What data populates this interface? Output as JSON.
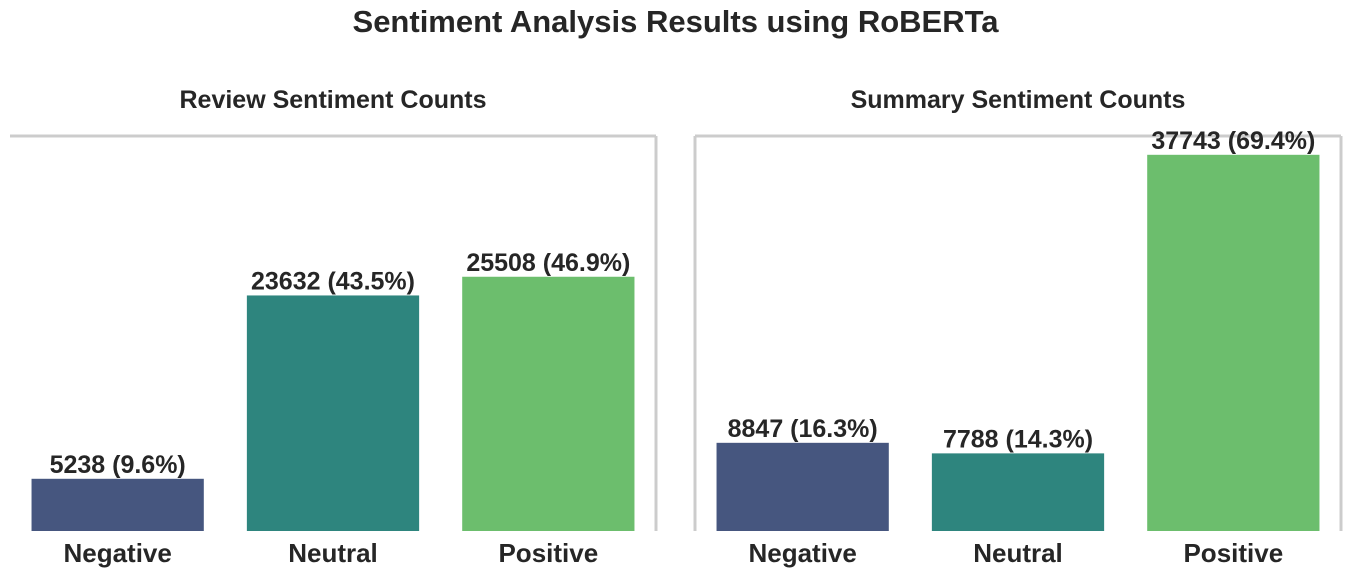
{
  "figure": {
    "title": "Sentiment Analysis Results using RoBERTa"
  },
  "chart_data": [
    {
      "type": "bar",
      "title": "Review Sentiment Counts",
      "categories": [
        "Negative",
        "Neutral",
        "Positive"
      ],
      "values": [
        5238,
        23632,
        25508
      ],
      "data_labels": [
        "5238 (9.6%)",
        "23632 (43.5%)",
        "25508 (46.9%)"
      ],
      "colors": [
        "#46567f",
        "#2e857e",
        "#6cbe6d"
      ],
      "ylim": [
        0,
        39630
      ],
      "y_ticks_visible": false,
      "grid": false
    },
    {
      "type": "bar",
      "title": "Summary Sentiment Counts",
      "categories": [
        "Negative",
        "Neutral",
        "Positive"
      ],
      "values": [
        8847,
        7788,
        37743
      ],
      "data_labels": [
        "8847 (16.3%)",
        "7788 (14.3%)",
        "37743 (69.4%)"
      ],
      "colors": [
        "#46567f",
        "#2e857e",
        "#6cbe6d"
      ],
      "ylim": [
        0,
        39630
      ],
      "y_ticks_visible": false,
      "grid": false
    }
  ]
}
